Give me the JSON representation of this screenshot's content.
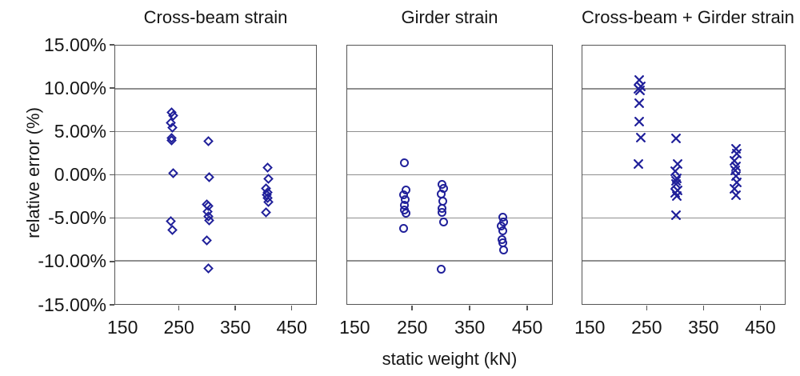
{
  "chart_data": {
    "type": "scatter",
    "xlabel": "static weight (kN)",
    "ylabel": "relative error (%)",
    "xlim": [
      137,
      493
    ],
    "ylim": [
      -15,
      15
    ],
    "x_ticks": [
      150,
      250,
      350,
      450
    ],
    "x_tick_labels": [
      "150",
      "250",
      "350",
      "450"
    ],
    "y_ticks": [
      15,
      10,
      5,
      0,
      -5,
      -10,
      -15
    ],
    "y_tick_labels": [
      "15.00%",
      "10.00%",
      "5.00%",
      "0.00%",
      "-5.00%",
      "-10.00%",
      "-15.00%"
    ],
    "grid": "horizontal",
    "legend": "none",
    "marker_color": "#20209A",
    "axis_color": "#555555",
    "grid_color": "#8F8F8F",
    "panels": [
      {
        "title": "Cross-beam strain",
        "marker": "diamond",
        "series": [
          {
            "x": 237,
            "relative_error_pct": [
              7.2,
              6.9,
              6.0,
              5.5,
              4.3,
              4.0,
              0.2,
              -5.4,
              -6.4
            ]
          },
          {
            "x": 302,
            "relative_error_pct": [
              3.9,
              -0.3,
              -3.4,
              -3.6,
              -4.3,
              -4.8,
              -5.3,
              -7.6,
              -10.9
            ]
          },
          {
            "x": 407,
            "relative_error_pct": [
              0.8,
              -0.5,
              -1.6,
              -2.0,
              -2.3,
              -2.7,
              -3.2,
              -4.4
            ]
          }
        ]
      },
      {
        "title": "Girder strain",
        "marker": "circle",
        "series": [
          {
            "x": 237,
            "relative_error_pct": [
              1.4,
              -1.8,
              -2.3,
              -2.9,
              -3.5,
              -4.1,
              -4.5,
              -6.2
            ]
          },
          {
            "x": 302,
            "relative_error_pct": [
              -1.1,
              -1.6,
              -2.2,
              -3.1,
              -3.9,
              -4.4,
              -5.5,
              -11.0
            ]
          },
          {
            "x": 407,
            "relative_error_pct": [
              -4.9,
              -5.5,
              -5.9,
              -6.5,
              -7.5,
              -7.9,
              -8.7
            ]
          }
        ]
      },
      {
        "title": "Cross-beam + Girder strain",
        "marker": "x",
        "series": [
          {
            "x": 237,
            "relative_error_pct": [
              11.0,
              10.3,
              10.0,
              9.8,
              8.3,
              6.2,
              4.3,
              1.3
            ]
          },
          {
            "x": 302,
            "relative_error_pct": [
              4.2,
              1.3,
              0.4,
              -0.4,
              -0.7,
              -1.1,
              -1.8,
              -2.1,
              -2.5,
              -4.7
            ]
          },
          {
            "x": 407,
            "relative_error_pct": [
              3.0,
              2.5,
              1.6,
              1.0,
              0.5,
              -0.1,
              -0.9,
              -1.6,
              -2.4
            ]
          }
        ]
      }
    ]
  }
}
